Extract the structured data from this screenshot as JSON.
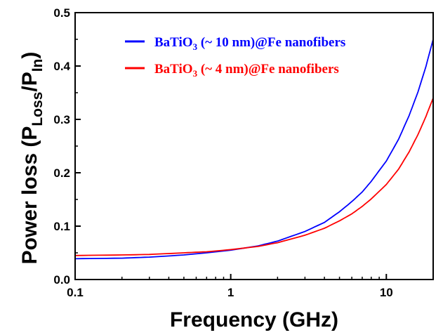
{
  "chart_data": {
    "type": "line",
    "xscale": "log",
    "xlim": [
      0.1,
      20
    ],
    "ylim": [
      0.0,
      0.5
    ],
    "xticks": [
      "0.1",
      "1",
      "10"
    ],
    "yticks": [
      "0.0",
      "0.1",
      "0.2",
      "0.3",
      "0.4",
      "0.5"
    ],
    "xlabel": "Frequency (GHz)",
    "ylabel": {
      "prefix": "Power loss (P",
      "sub1": "Loss",
      "mid": "/P",
      "sub2": "In",
      "suffix": ")"
    },
    "legend_position": "top-right",
    "grid": false,
    "series": [
      {
        "name_parts": {
          "a": "BaTiO",
          "sub": "3",
          "b": " (~ 10 nm)@Fe nanofibers"
        },
        "color": "#0000ff",
        "x": [
          0.1,
          0.2,
          0.3,
          0.5,
          0.7,
          1,
          1.5,
          2,
          3,
          4,
          5,
          6,
          7,
          8,
          10,
          12,
          14,
          16,
          18,
          20
        ],
        "y": [
          0.039,
          0.04,
          0.042,
          0.046,
          0.05,
          0.055,
          0.063,
          0.072,
          0.09,
          0.107,
          0.127,
          0.146,
          0.164,
          0.184,
          0.222,
          0.263,
          0.307,
          0.352,
          0.4,
          0.45
        ]
      },
      {
        "name_parts": {
          "a": "BaTiO",
          "sub": "3",
          "b": " (~ 4 nm)@Fe nanofibers"
        },
        "color": "#ff0000",
        "x": [
          0.1,
          0.2,
          0.3,
          0.5,
          0.7,
          1,
          1.5,
          2,
          3,
          4,
          5,
          6,
          7,
          8,
          10,
          12,
          14,
          16,
          18,
          20
        ],
        "y": [
          0.045,
          0.046,
          0.047,
          0.05,
          0.052,
          0.056,
          0.062,
          0.069,
          0.083,
          0.096,
          0.11,
          0.123,
          0.137,
          0.151,
          0.178,
          0.207,
          0.239,
          0.272,
          0.306,
          0.34
        ]
      }
    ]
  }
}
